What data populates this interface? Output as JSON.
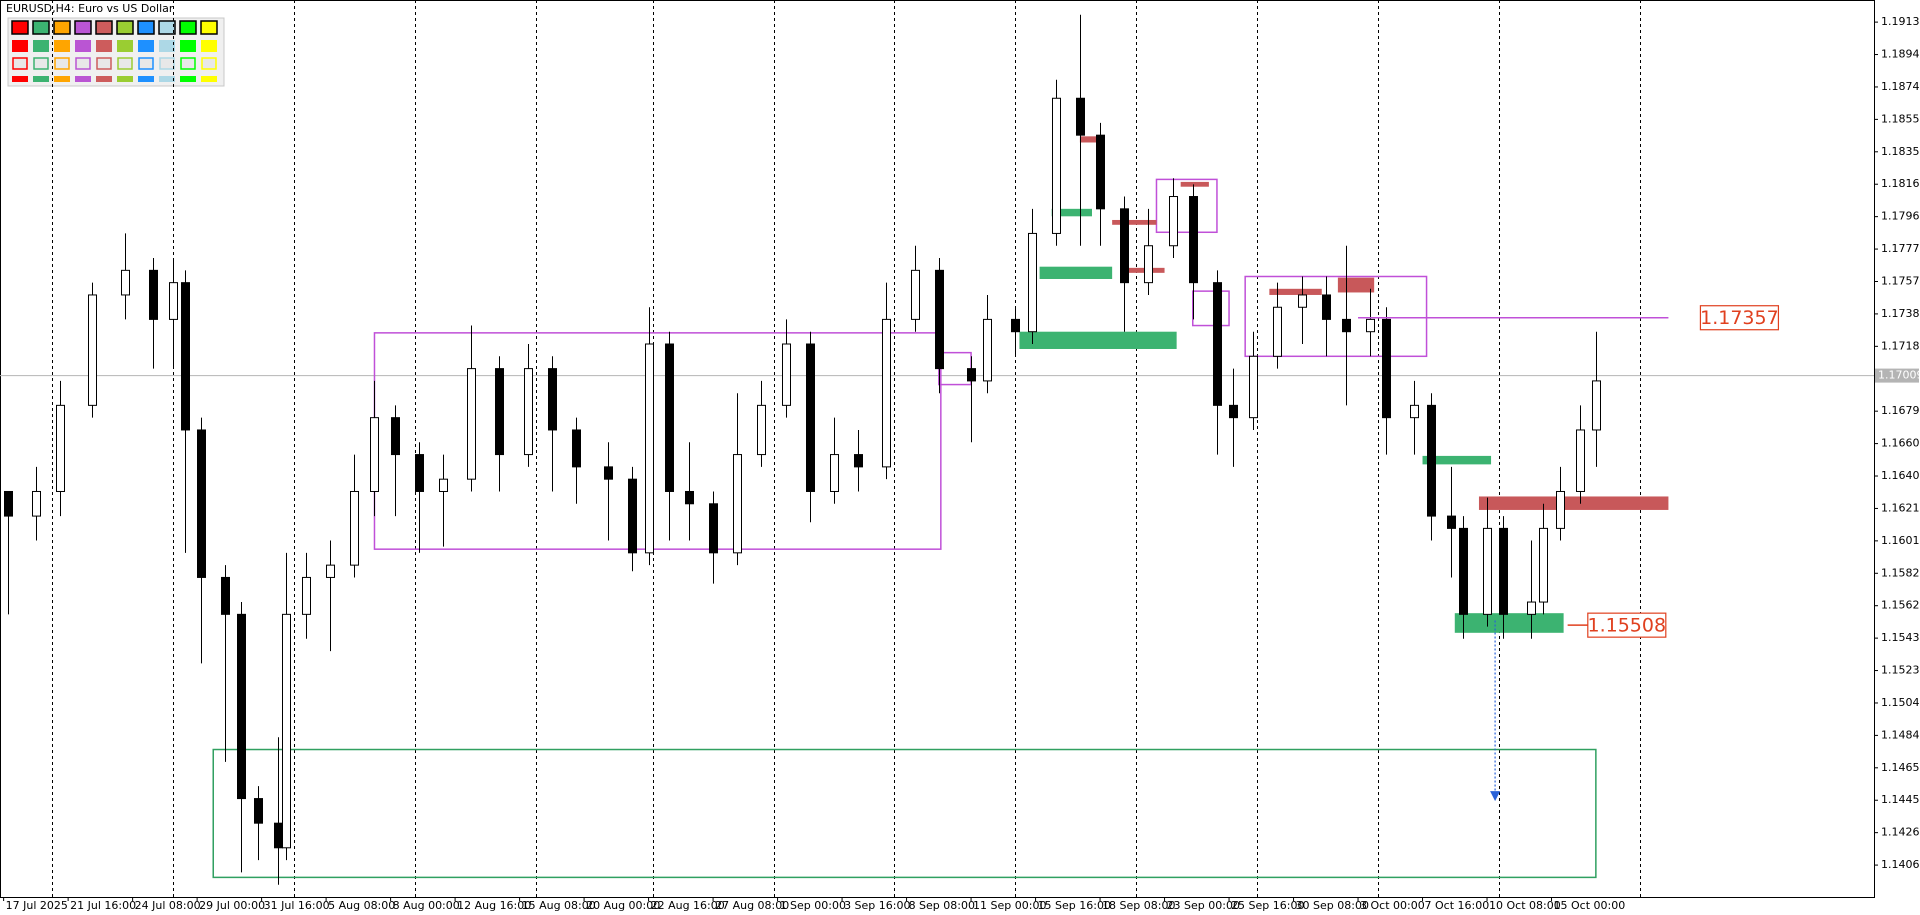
{
  "chart_data": {
    "type": "candlestick",
    "title": "EURUSD,H4:  Euro vs US Dollar",
    "xlim": [
      -0.9,
      464
    ],
    "ylim": [
      1.13873,
      1.19268
    ],
    "xticks": [
      {
        "value": 0,
        "label": "17 Jul 2025"
      },
      {
        "value": 16,
        "label": "21 Jul 16:00"
      },
      {
        "value": 32,
        "label": "24 Jul 08:00"
      },
      {
        "value": 48,
        "label": "29 Jul 00:00"
      },
      {
        "value": 64,
        "label": "31 Jul 16:00"
      },
      {
        "value": 80,
        "label": "5 Aug 08:00"
      },
      {
        "value": 96,
        "label": "8 Aug 00:00"
      },
      {
        "value": 112,
        "label": "12 Aug 16:00"
      },
      {
        "value": 128,
        "label": "15 Aug 08:00"
      },
      {
        "value": 144,
        "label": "20 Aug 00:00"
      },
      {
        "value": 160,
        "label": "22 Aug 16:00"
      },
      {
        "value": 176,
        "label": "27 Aug 08:00"
      },
      {
        "value": 192,
        "label": "1 Sep 00:00"
      },
      {
        "value": 208,
        "label": "3 Sep 16:00"
      },
      {
        "value": 224,
        "label": "8 Sep 08:00"
      },
      {
        "value": 240,
        "label": "11 Sep 00:00"
      },
      {
        "value": 256,
        "label": "15 Sep 16:00"
      },
      {
        "value": 272,
        "label": "18 Sep 08:00"
      },
      {
        "value": 288,
        "label": "23 Sep 00:00"
      },
      {
        "value": 304,
        "label": "25 Sep 16:00"
      },
      {
        "value": 320,
        "label": "30 Sep 08:00"
      },
      {
        "value": 336,
        "label": "3 Oct 00:00"
      },
      {
        "value": 352,
        "label": "7 Oct 16:00"
      },
      {
        "value": 368,
        "label": "10 Oct 08:00"
      },
      {
        "value": 384,
        "label": "15 Oct 00:00"
      }
    ],
    "yticks": [
      1.19135,
      {
        "value": 1.1894,
        "label": "1.18940"
      },
      1.18745,
      {
        "value": 1.1855,
        "label": "1.18550"
      },
      1.18355,
      {
        "value": 1.1816,
        "label": "1.18160"
      },
      1.17965,
      {
        "value": 1.1777,
        "label": "1.17770"
      },
      1.17575,
      {
        "value": 1.1738,
        "label": "1.17380"
      },
      1.17185,
      1.16795,
      {
        "value": 1.166,
        "label": "1.16600"
      },
      1.16405,
      {
        "value": 1.1621,
        "label": "1.16210"
      },
      1.16015,
      {
        "value": 1.1582,
        "label": "1.15820"
      },
      1.15625,
      {
        "value": 1.1543,
        "label": "1.15430"
      },
      1.15235,
      {
        "value": 1.1504,
        "label": "1.15040"
      },
      1.14845,
      {
        "value": 1.1465,
        "label": "1.14650"
      },
      1.14455,
      {
        "value": 1.1426,
        "label": "1.14260"
      },
      1.14065
    ],
    "separators": [
      12,
      42,
      72,
      102,
      132,
      161,
      191,
      221,
      251,
      281,
      311,
      341,
      371,
      406
    ],
    "current_price": {
      "value": 1.17009,
      "color": "#b4b4b4"
    },
    "x": [
      1,
      8,
      14,
      22,
      30,
      37,
      42,
      45,
      49,
      55,
      59,
      63,
      68,
      70,
      75,
      81,
      87,
      92,
      97,
      103,
      109,
      116,
      123,
      130,
      136,
      142,
      150,
      156,
      160,
      165,
      170,
      176,
      182,
      188,
      194,
      200,
      206,
      212,
      219,
      226,
      232,
      240,
      244,
      251,
      255,
      261,
      267,
      272,
      278,
      284,
      290,
      295,
      301,
      305,
      310,
      316,
      322,
      328,
      333,
      339,
      343,
      350,
      354,
      359,
      362,
      368,
      372,
      379,
      382,
      386,
      391,
      395
    ],
    "candles": [
      [
        1.16312,
        1.16312,
        1.15573,
        1.16164
      ],
      [
        1.16164,
        1.1646,
        1.16017,
        1.16312
      ],
      [
        1.16312,
        1.16977,
        1.16164,
        1.1683
      ],
      [
        1.1683,
        1.17568,
        1.16756,
        1.17494
      ],
      [
        1.17494,
        1.17864,
        1.17347,
        1.17642
      ],
      [
        1.17642,
        1.17716,
        1.17051,
        1.17347
      ],
      [
        1.17347,
        1.17716,
        1.17051,
        1.17568
      ],
      [
        1.17568,
        1.17642,
        1.15943,
        1.16682
      ],
      [
        1.16682,
        1.16756,
        1.15278,
        1.15795
      ],
      [
        1.15795,
        1.15869,
        1.14686,
        1.15573
      ],
      [
        1.15573,
        1.15647,
        1.14021,
        1.14465
      ],
      [
        1.14465,
        1.1454,
        1.14095,
        1.14317
      ],
      [
        1.14317,
        1.14834,
        1.13947,
        1.14169
      ],
      [
        1.14169,
        1.15943,
        1.14095,
        1.15573
      ],
      [
        1.15573,
        1.15943,
        1.15426,
        1.15795
      ],
      [
        1.15795,
        1.16017,
        1.15352,
        1.15869
      ],
      [
        1.15869,
        1.16534,
        1.15795,
        1.16312
      ],
      [
        1.16312,
        1.16977,
        1.16164,
        1.16756
      ],
      [
        1.16756,
        1.1683,
        1.16164,
        1.16534
      ],
      [
        1.16534,
        1.16608,
        1.15943,
        1.16312
      ],
      [
        1.16312,
        1.16534,
        1.1598,
        1.16386
      ],
      [
        1.16386,
        1.1731,
        1.16312,
        1.17051
      ],
      [
        1.17051,
        1.17125,
        1.16312,
        1.16534
      ],
      [
        1.16534,
        1.17199,
        1.1646,
        1.17051
      ],
      [
        1.17051,
        1.17125,
        1.16312,
        1.16682
      ],
      [
        1.16682,
        1.16756,
        1.16238,
        1.1646
      ],
      [
        1.1646,
        1.16608,
        1.16017,
        1.16386
      ],
      [
        1.16386,
        1.1646,
        1.15832,
        1.15943
      ],
      [
        1.15943,
        1.1742,
        1.15869,
        1.17199
      ],
      [
        1.17199,
        1.17273,
        1.16017,
        1.16312
      ],
      [
        1.16312,
        1.16608,
        1.16017,
        1.16238
      ],
      [
        1.16238,
        1.16312,
        1.15758,
        1.15943
      ],
      [
        1.15943,
        1.16903,
        1.15869,
        1.16534
      ],
      [
        1.16534,
        1.16977,
        1.1646,
        1.1683
      ],
      [
        1.1683,
        1.17347,
        1.16756,
        1.17199
      ],
      [
        1.17199,
        1.17273,
        1.16127,
        1.16312
      ],
      [
        1.16312,
        1.16756,
        1.16238,
        1.16534
      ],
      [
        1.16534,
        1.16682,
        1.16312,
        1.1646
      ],
      [
        1.1646,
        1.17568,
        1.16386,
        1.17347
      ],
      [
        1.17347,
        1.1779,
        1.17273,
        1.17642
      ],
      [
        1.17642,
        1.17716,
        1.16903,
        1.17051
      ],
      [
        1.17051,
        1.17125,
        1.16608,
        1.16977
      ],
      [
        1.16977,
        1.17494,
        1.16903,
        1.17347
      ],
      [
        1.17347,
        1.1742,
        1.17125,
        1.17273
      ],
      [
        1.17273,
        1.18012,
        1.17199,
        1.17864
      ],
      [
        1.17864,
        1.18788,
        1.1779,
        1.18677
      ],
      [
        1.18677,
        1.19179,
        1.1779,
        1.18455
      ],
      [
        1.18455,
        1.18529,
        1.1779,
        1.18012
      ],
      [
        1.18012,
        1.18086,
        1.17273,
        1.17568
      ],
      [
        1.17568,
        1.18012,
        1.17494,
        1.1779
      ],
      [
        1.1779,
        1.18196,
        1.17716,
        1.18086
      ],
      [
        1.18086,
        1.18159,
        1.17347,
        1.17568
      ],
      [
        1.17568,
        1.17642,
        1.16534,
        1.1683
      ],
      [
        1.1683,
        1.17051,
        1.1646,
        1.16756
      ],
      [
        1.16756,
        1.17273,
        1.16682,
        1.17125
      ],
      [
        1.17125,
        1.17568,
        1.17051,
        1.1742
      ],
      [
        1.1742,
        1.17605,
        1.17199,
        1.17494
      ],
      [
        1.17494,
        1.17605,
        1.17125,
        1.17347
      ],
      [
        1.17347,
        1.1779,
        1.1683,
        1.17273
      ],
      [
        1.17273,
        1.17531,
        1.17125,
        1.17347
      ],
      [
        1.17347,
        1.1742,
        1.16534,
        1.16756
      ],
      [
        1.16756,
        1.16977,
        1.16534,
        1.1683
      ],
      [
        1.1683,
        1.16903,
        1.16017,
        1.16164
      ],
      [
        1.16164,
        1.1646,
        1.15795,
        1.1609
      ],
      [
        1.1609,
        1.16164,
        1.15426,
        1.15573
      ],
      [
        1.15573,
        1.16275,
        1.15499,
        1.1609
      ],
      [
        1.1609,
        1.16164,
        1.15426,
        1.15573
      ],
      [
        1.15573,
        1.16017,
        1.15426,
        1.15647
      ],
      [
        1.15647,
        1.16238,
        1.15573,
        1.1609
      ],
      [
        1.1609,
        1.1646,
        1.16017,
        1.16312
      ],
      [
        1.16312,
        1.1683,
        1.16238,
        1.16682
      ],
      [
        1.16682,
        1.17273,
        1.1646,
        1.16977
      ]
    ],
    "zones": [
      {
        "x": [
          92,
          232.5
        ],
        "y": [
          1.15965,
          1.17266
        ],
        "color": "#c050d8"
      },
      {
        "x": [
          232,
          240
        ],
        "y": [
          1.16955,
          1.17147
        ],
        "color": "#c050d8"
      },
      {
        "x": [
          286,
          301
        ],
        "y": [
          1.17871,
          1.18189
        ],
        "color": "#c050d8"
      },
      {
        "x": [
          295,
          304
        ],
        "y": [
          1.1731,
          1.17517
        ],
        "color": "#c050d8"
      },
      {
        "x": [
          308,
          353
        ],
        "y": [
          1.17125,
          1.17605
        ],
        "color": "#c050d8"
      },
      {
        "x": [
          52,
          395
        ],
        "y": [
          1.13991,
          1.1476
        ],
        "color": "#30a060"
      }
    ],
    "bars": [
      {
        "x": [
          267,
          272
        ],
        "y": [
          1.18411,
          1.18448
        ],
        "color": "#c8585a"
      },
      {
        "x": [
          260,
          270
        ],
        "y": [
          1.17967,
          1.18012
        ],
        "color": "#3cb371"
      },
      {
        "x": [
          275,
          286
        ],
        "y": [
          1.17916,
          1.17945
        ],
        "color": "#c8585a"
      },
      {
        "x": [
          292,
          299
        ],
        "y": [
          1.18145,
          1.18174
        ],
        "color": "#c8585a"
      },
      {
        "x": [
          257,
          275
        ],
        "y": [
          1.1759,
          1.17664
        ],
        "color": "#3cb371"
      },
      {
        "x": [
          278,
          288
        ],
        "y": [
          1.17627,
          1.17657
        ],
        "color": "#c8585a"
      },
      {
        "x": [
          252,
          291
        ],
        "y": [
          1.17169,
          1.17273
        ],
        "color": "#3cb371"
      },
      {
        "x": [
          314,
          327
        ],
        "y": [
          1.17494,
          1.17531
        ],
        "color": "#c8585a"
      },
      {
        "x": [
          331,
          340
        ],
        "y": [
          1.17509,
          1.17598
        ],
        "color": "#c8585a"
      },
      {
        "x": [
          352,
          369
        ],
        "y": [
          1.16475,
          1.16526
        ],
        "color": "#3cb371"
      },
      {
        "x": [
          366,
          413
        ],
        "y": [
          1.16201,
          1.16282
        ],
        "color": "#c8585a"
      },
      {
        "x": [
          360,
          387
        ],
        "y": [
          1.15462,
          1.1558
        ],
        "color": "#3cb371"
      }
    ],
    "levels": [
      {
        "value": 1.17357,
        "x": [
          336,
          413
        ],
        "color": "#c050d8",
        "label_color": "#e0401f"
      },
      {
        "value": 1.15508,
        "x": [
          388,
          393
        ],
        "color": "#e0401f",
        "label_color": "#e0401f"
      }
    ],
    "arrow": {
      "x": 370,
      "y": [
        1.15536,
        1.1445
      ],
      "color": "#2a62d8"
    }
  }
}
